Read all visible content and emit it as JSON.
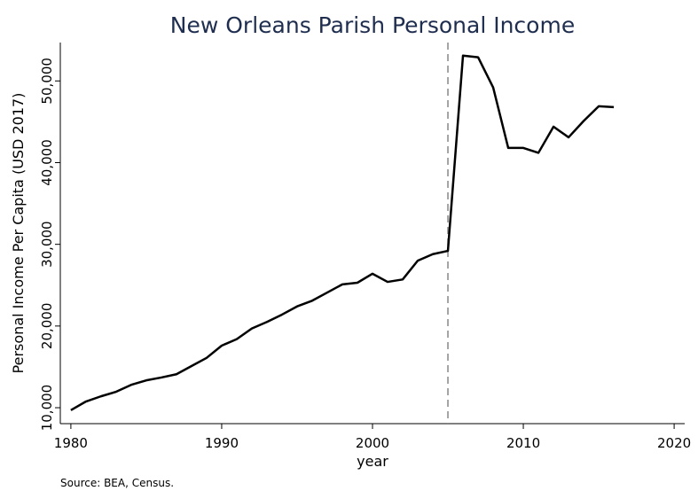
{
  "chart_data": {
    "type": "line",
    "title": "New Orleans Parish Personal Income",
    "x_label": "year",
    "y_label": "Personal Income Per Capita (USD 2017)",
    "note": "Source: BEA, Census.",
    "x": [
      1980,
      1981,
      1982,
      1983,
      1984,
      1985,
      1986,
      1987,
      1988,
      1989,
      1990,
      1991,
      1992,
      1993,
      1994,
      1995,
      1996,
      1997,
      1998,
      1999,
      2000,
      2001,
      2002,
      2003,
      2004,
      2005,
      2006,
      2007,
      2008,
      2009,
      2010,
      2011,
      2012,
      2013,
      2014,
      2015,
      2016
    ],
    "series": [
      {
        "color": "#000000",
        "values": [
          9700,
          10760,
          11400,
          11950,
          12800,
          13350,
          13700,
          14100,
          15100,
          16100,
          17600,
          18400,
          19700,
          20500,
          21400,
          22400,
          23100,
          24100,
          25100,
          25300,
          26400,
          25400,
          25700,
          28000,
          28800,
          29200,
          53100,
          52900,
          49200,
          41800,
          41800,
          41200,
          44400,
          43100,
          45100,
          46900,
          46800
        ]
      }
    ],
    "vline": 2005,
    "xlim": [
      1979.3,
      2020.7
    ],
    "ylim": [
      8050,
      54700
    ],
    "xticks": [
      1980,
      1990,
      2000,
      2010,
      2020
    ],
    "yticks": [
      {
        "value": 10000,
        "label": "10,000"
      },
      {
        "value": 20000,
        "label": "20,000"
      },
      {
        "value": 30000,
        "label": "30,000"
      },
      {
        "value": 40000,
        "label": "40,000"
      },
      {
        "value": 50000,
        "label": "50,000"
      }
    ]
  }
}
